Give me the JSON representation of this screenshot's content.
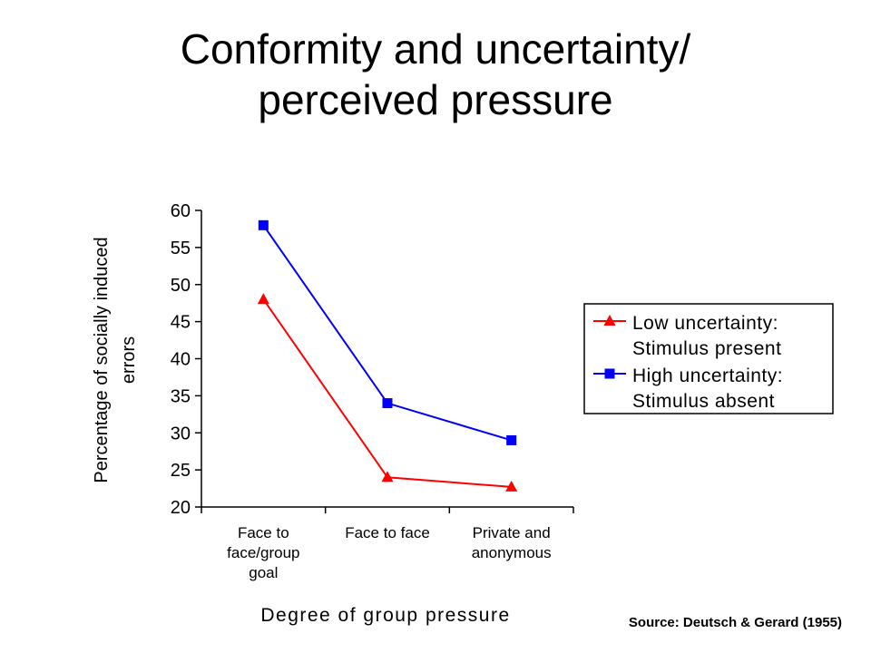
{
  "title_lines": [
    "Conformity and uncertainty/",
    "perceived pressure"
  ],
  "source": "Source: Deutsch & Gerard (1955)",
  "colors": {
    "low": "#ff0000",
    "high": "#0000ff",
    "axis": "#000000"
  },
  "chart_data": {
    "type": "line",
    "categories": [
      [
        "Face to",
        "face/group",
        "goal"
      ],
      [
        "Face to face"
      ],
      [
        "Private and",
        "anonymous"
      ]
    ],
    "series": [
      {
        "name": [
          "Low uncertainty:",
          "Stimulus present"
        ],
        "values": [
          48,
          24,
          22.7
        ],
        "marker": "triangle",
        "color": "#ff0000"
      },
      {
        "name": [
          "High uncertainty:",
          "Stimulus absent"
        ],
        "values": [
          58,
          34,
          29
        ],
        "marker": "square",
        "color": "#0000ff"
      }
    ],
    "ylim": [
      20,
      60
    ],
    "yticks": [
      20,
      25,
      30,
      35,
      40,
      45,
      50,
      55,
      60
    ],
    "ylabel_lines": [
      "Percentage of socially induced",
      "errors"
    ],
    "xlabel": "Degree of group pressure",
    "legend": "right",
    "grid": false
  }
}
